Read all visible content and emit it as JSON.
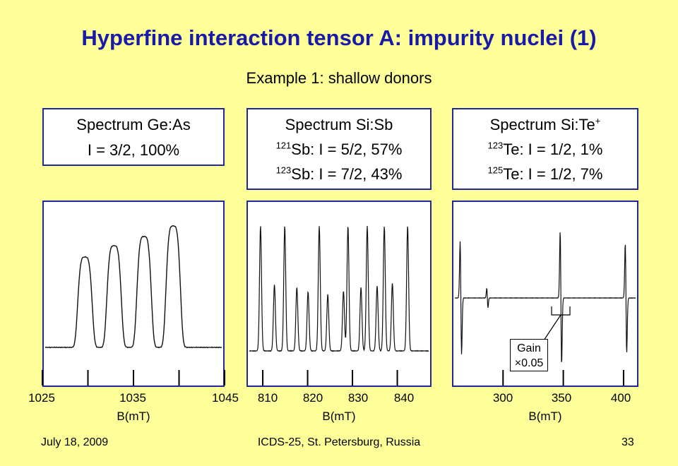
{
  "slide": {
    "title": "Hyperfine interaction tensor A: impurity nuclei (1)",
    "subtitle": "Example 1: shallow donors",
    "title_color": "#1a1aa8",
    "background": "#ffff99"
  },
  "boxes": [
    {
      "line1": "Spectrum Ge:As",
      "line2": "I = 3/2, 100%"
    },
    {
      "line1": "Spectrum Si:Sb",
      "l2_sup": "121",
      "l2_text": "Sb: I = 5/2, 57%",
      "l3_sup": "123",
      "l3_text": "Sb: I = 7/2, 43%"
    },
    {
      "line1": "Spectrum Si:Te",
      "l1_sup": "+",
      "l2_sup": "123",
      "l2_text": "Te: I = 1/2, 1%",
      "l3_sup": "125",
      "l3_text": "Te: I = 1/2, 7%"
    }
  ],
  "chart_data": [
    {
      "type": "line",
      "title": "Spectrum Ge:As",
      "xlabel": "B(mT)",
      "x_ticks": [
        "1025",
        "1035",
        "1045"
      ],
      "xlim": [
        1025,
        1045
      ],
      "description_peaks": [
        1029.5,
        1032.8,
        1036.2,
        1039.5
      ]
    },
    {
      "type": "line",
      "title": "Spectrum Si:Sb",
      "xlabel": "B(mT)",
      "x_ticks": [
        "810",
        "820",
        "830",
        "840"
      ],
      "xlim": [
        807,
        847
      ],
      "description_peaks": [
        809.5,
        812.6,
        814.9,
        817.6,
        820.1,
        822.6,
        824.5,
        828.0,
        829.0,
        831.9,
        833.3,
        835.5,
        837.1,
        838.9,
        842.3
      ]
    },
    {
      "type": "line",
      "title": "Spectrum Si:Te+",
      "xlabel": "B(mT)",
      "x_ticks": [
        "300",
        "350",
        "400"
      ],
      "xlim": [
        260,
        410
      ],
      "description_peaks": [
        265,
        287,
        348,
        402
      ],
      "annotation": {
        "line1": "Gain",
        "line2": "×0.05"
      }
    }
  ],
  "footer": {
    "date": "July 18, 2009",
    "conference": "ICDS-25, St. Petersburg, Russia",
    "page": "33"
  }
}
